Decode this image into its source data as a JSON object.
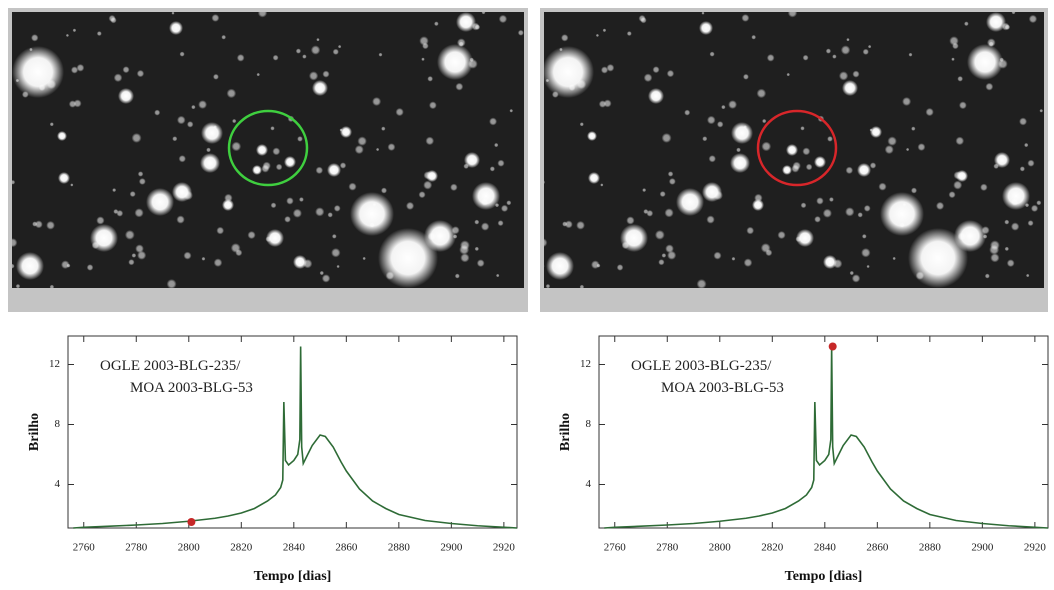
{
  "chart_data": [
    {
      "type": "line",
      "annotation": [
        "OGLE 2003-BLG-235/",
        "MOA 2003-BLG-53"
      ],
      "xlabel": "Tempo [dias]",
      "ylabel": "Brilho",
      "x": [
        2756,
        2760,
        2770,
        2780,
        2790,
        2800,
        2810,
        2815,
        2820,
        2825,
        2830,
        2833,
        2835,
        2835.8,
        2836.2,
        2836.8,
        2838,
        2840,
        2841.5,
        2842.3,
        2842.6,
        2843,
        2843.6,
        2845,
        2847,
        2850,
        2852,
        2855,
        2858,
        2860,
        2865,
        2870,
        2875,
        2880,
        2890,
        2900,
        2910,
        2925
      ],
      "series": [
        {
          "color": "#2e6b36",
          "values": [
            1.1,
            1.15,
            1.22,
            1.3,
            1.4,
            1.55,
            1.75,
            1.9,
            2.1,
            2.4,
            2.9,
            3.3,
            3.8,
            4.3,
            9.5,
            5.6,
            5.3,
            5.6,
            6.0,
            7.0,
            13.2,
            6.5,
            5.4,
            5.9,
            6.6,
            7.3,
            7.2,
            6.5,
            5.5,
            4.9,
            3.7,
            2.9,
            2.4,
            2.0,
            1.6,
            1.4,
            1.25,
            1.1
          ]
        }
      ],
      "highlight": {
        "x": 2801,
        "y": 1.5,
        "color": "#c62828"
      },
      "xlim": [
        2754,
        2925
      ],
      "ylim": [
        1.1,
        13.9
      ],
      "xticks": [
        2760,
        2780,
        2800,
        2820,
        2840,
        2860,
        2880,
        2900,
        2920
      ],
      "yticks": [
        4,
        8,
        12
      ]
    },
    {
      "type": "line",
      "annotation": [
        "OGLE 2003-BLG-235/",
        "MOA 2003-BLG-53"
      ],
      "xlabel": "Tempo [dias]",
      "ylabel": "Brilho",
      "x": [
        2756,
        2760,
        2770,
        2780,
        2790,
        2800,
        2810,
        2815,
        2820,
        2825,
        2830,
        2833,
        2835,
        2835.8,
        2836.2,
        2836.8,
        2838,
        2840,
        2841.5,
        2842.3,
        2842.6,
        2843,
        2843.6,
        2845,
        2847,
        2850,
        2852,
        2855,
        2858,
        2860,
        2865,
        2870,
        2875,
        2880,
        2890,
        2900,
        2910,
        2925
      ],
      "series": [
        {
          "color": "#2e6b36",
          "values": [
            1.1,
            1.15,
            1.22,
            1.3,
            1.4,
            1.55,
            1.75,
            1.9,
            2.1,
            2.4,
            2.9,
            3.3,
            3.8,
            4.3,
            9.5,
            5.6,
            5.3,
            5.6,
            6.0,
            7.0,
            13.2,
            6.5,
            5.4,
            5.9,
            6.6,
            7.3,
            7.2,
            6.5,
            5.5,
            4.9,
            3.7,
            2.9,
            2.4,
            2.0,
            1.6,
            1.4,
            1.25,
            1.1
          ]
        }
      ],
      "highlight": {
        "x": 2843,
        "y": 13.2,
        "color": "#c62828"
      },
      "xlim": [
        2754,
        2925
      ],
      "ylim": [
        1.1,
        13.9
      ],
      "xticks": [
        2760,
        2780,
        2800,
        2820,
        2840,
        2860,
        2880,
        2900,
        2920
      ],
      "yticks": [
        4,
        8,
        12
      ]
    }
  ]
}
